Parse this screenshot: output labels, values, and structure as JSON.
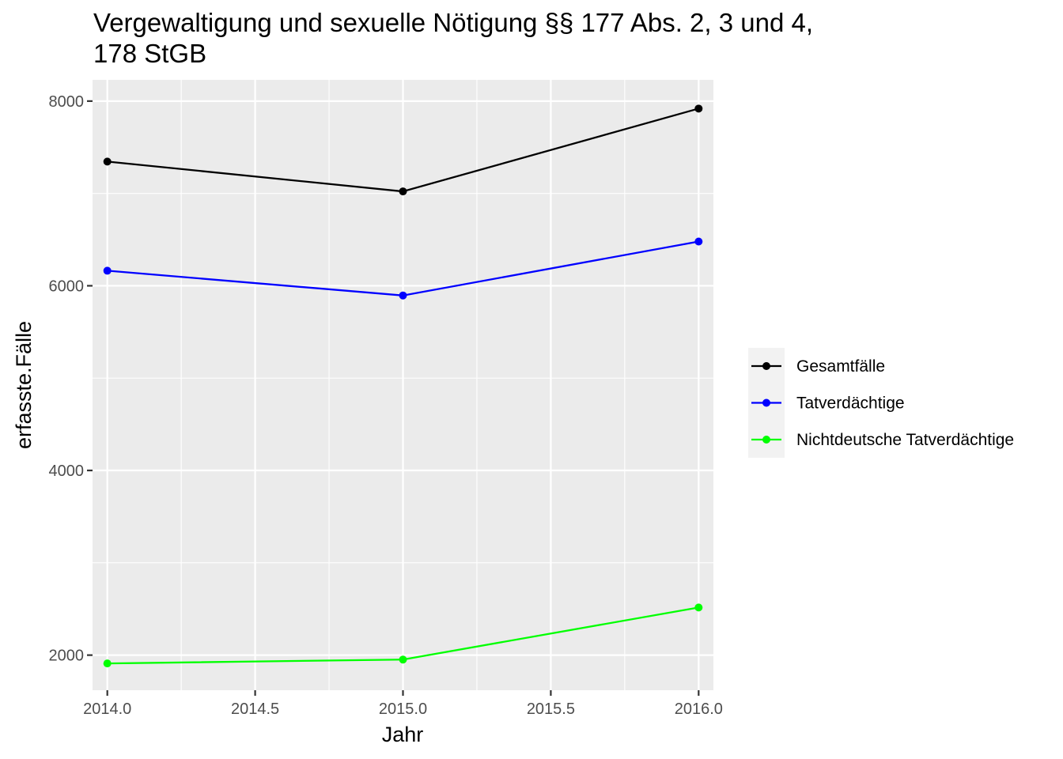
{
  "chart_data": {
    "type": "line",
    "title_lines": [
      "Vergewaltigung und sexuelle Nötigung §§ 177 Abs. 2, 3 und 4,",
      "178 StGB"
    ],
    "xlabel": "Jahr",
    "ylabel": "erfasste.Fälle",
    "x": [
      2014,
      2015,
      2016
    ],
    "x_ticks": [
      2014.0,
      2014.5,
      2015.0,
      2015.5,
      2016.0
    ],
    "x_tick_labels": [
      "2014.0",
      "2014.5",
      "2015.0",
      "2015.5",
      "2016.0"
    ],
    "y_ticks": [
      2000,
      4000,
      6000,
      8000
    ],
    "y_tick_labels": [
      "2000",
      "4000",
      "6000",
      "8000"
    ],
    "xlim": [
      2013.95,
      2016.05
    ],
    "ylim": [
      1620,
      8230
    ],
    "grid": true,
    "legend_position": "right",
    "series": [
      {
        "name": "Gesamtfälle",
        "color": "#000000",
        "values": [
          7345,
          7022,
          7919
        ]
      },
      {
        "name": "Tatverdächtige",
        "color": "#0000ff",
        "values": [
          6163,
          5895,
          6479
        ]
      },
      {
        "name": "Nichtdeutsche Tatverdächtige",
        "color": "#00ff00",
        "values": [
          1910,
          1952,
          2516
        ]
      }
    ]
  }
}
